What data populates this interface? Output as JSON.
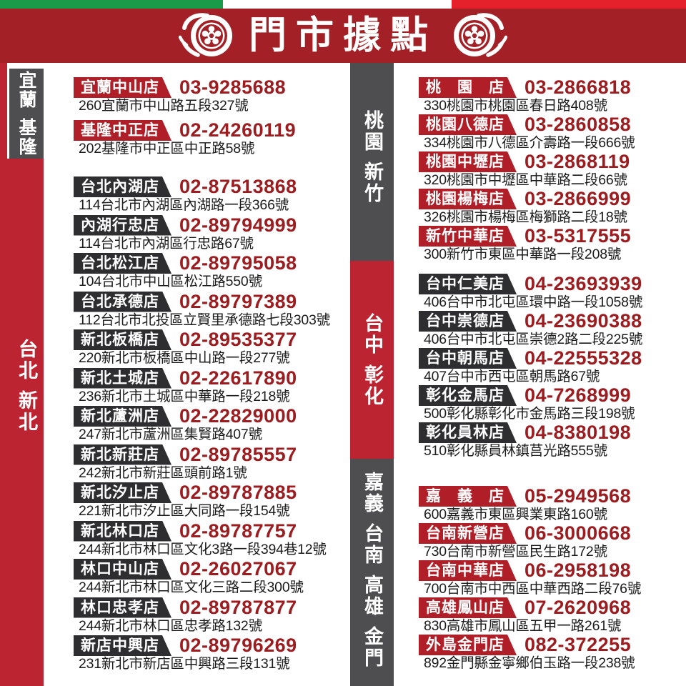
{
  "header": {
    "title": "門市據點",
    "left_icon": "tire-wheel-icon",
    "right_icon": "tire-wheel-icon"
  },
  "flag_stripe": {
    "green": "#1A9B4A",
    "white": "#FFFFFF",
    "red": "#E5222C"
  },
  "colors": {
    "banner_red": "#A32026",
    "badge_red": "#B01F27",
    "badge_dark": "#2E2E30",
    "bar_gray": "#4E4E50",
    "bar_red": "#BC2431",
    "phone_red": "#9C1C20",
    "address_black": "#1B1B1B"
  },
  "sidebars": {
    "left": [
      {
        "words": [
          "宜蘭",
          "基隆"
        ],
        "style": "gray"
      },
      {
        "words": [
          "台北",
          "新北"
        ],
        "style": "red"
      }
    ],
    "middle": [
      {
        "words": [
          "桃園",
          "新竹"
        ],
        "style": "gray"
      },
      {
        "words": [
          "台中",
          "彰化"
        ],
        "style": "red"
      },
      {
        "words": [
          "嘉義",
          "台南",
          "高雄",
          "金門"
        ],
        "style": "gray"
      }
    ]
  },
  "columns": {
    "left": [
      {
        "region": "宜蘭基隆",
        "badge_style": "red",
        "stores": [
          {
            "name": "宜蘭中山店",
            "phone": "03-9285688",
            "address": "260宜蘭市中山路五段327號"
          },
          {
            "name": "基隆中正店",
            "phone": "02-24260119",
            "address": "202基隆市中正區中正路58號"
          }
        ]
      },
      {
        "region": "台北新北",
        "badge_style": "dark",
        "stores": [
          {
            "name": "台北內湖店",
            "phone": "02-87513868",
            "address": "114台北市內湖區內湖路一段366號"
          },
          {
            "name": "內湖行忠店",
            "phone": "02-89794999",
            "address": "114台北市內湖區行忠路67號"
          },
          {
            "name": "台北松江店",
            "phone": "02-89795058",
            "address": "104台北市中山區松江路550號"
          },
          {
            "name": "台北承德店",
            "phone": "02-89797389",
            "address": "112台北市北投區立賢里承德路七段303號"
          },
          {
            "name": "新北板橋店",
            "phone": "02-89535377",
            "address": "220新北市板橋區中山路一段277號"
          },
          {
            "name": "新北土城店",
            "phone": "02-22617890",
            "address": "236新北市土城區中華路一段218號"
          },
          {
            "name": "新北蘆洲店",
            "phone": "02-22829000",
            "address": "247新北市蘆洲區集賢路407號"
          },
          {
            "name": "新北新莊店",
            "phone": "02-89785557",
            "address": "242新北市新莊區頭前路1號"
          },
          {
            "name": "新北汐止店",
            "phone": "02-89787885",
            "address": "221新北市汐止區大同路一段154號"
          },
          {
            "name": "新北林口店",
            "phone": "02-89787757",
            "address": "244新北市林口區文化3路一段394巷12號"
          },
          {
            "name": "林口中山店",
            "phone": "02-26027067",
            "address": "244新北市林口區文化三路二段300號"
          },
          {
            "name": "林口忠孝店",
            "phone": "02-89787877",
            "address": "244新北市林口區忠孝路132號"
          },
          {
            "name": "新店中興店",
            "phone": "02-89796269",
            "address": "231新北市新店區中興路三段131號"
          }
        ]
      }
    ],
    "right": [
      {
        "region": "桃園新竹",
        "badge_style": "red",
        "stores": [
          {
            "name": "桃　園　店",
            "phone": "03-2866818",
            "address": "330桃園市桃園區春日路408號"
          },
          {
            "name": "桃園八德店",
            "phone": "03-2860858",
            "address": "334桃園市八德區介壽路一段666號"
          },
          {
            "name": "桃園中壢店",
            "phone": "03-2868119",
            "address": "320桃園市中壢區中華路二段66號"
          },
          {
            "name": "桃園楊梅店",
            "phone": "03-2866999",
            "address": "326桃園市楊梅區梅獅路二段18號"
          },
          {
            "name": "新竹中華店",
            "phone": "03-5317555",
            "address": "300新竹市東區中華路一段208號"
          }
        ]
      },
      {
        "region": "台中彰化",
        "badge_style": "dark",
        "stores": [
          {
            "name": "台中仁美店",
            "phone": "04-23693939",
            "address": "406台中市北屯區環中路一段1058號"
          },
          {
            "name": "台中崇德店",
            "phone": "04-23690388",
            "address": "406台中市北屯區崇德2路二段225號"
          },
          {
            "name": "台中朝馬店",
            "phone": "04-22555328",
            "address": "407台中市西屯區朝馬路67號"
          },
          {
            "name": "彰化金馬店",
            "phone": "04-7268999",
            "address": "500彰化縣彰化市金馬路三段198號"
          },
          {
            "name": "彰化員林店",
            "phone": "04-8380198",
            "address": "510彰化縣員林鎮莒光路555號"
          }
        ]
      },
      {
        "region": "嘉義台南高雄金門",
        "badge_style": "red",
        "stores": [
          {
            "name": "嘉　義　店",
            "phone": "05-2949568",
            "address": "600嘉義市東區興業東路160號"
          },
          {
            "name": "台南新營店",
            "phone": "06-3000668",
            "address": "730台南市新營區民生路172號"
          },
          {
            "name": "台南中華店",
            "phone": "06-2958198",
            "address": "700台南市中西區中華西路二段76號"
          },
          {
            "name": "高雄鳳山店",
            "phone": "07-2620968",
            "address": "830高雄市鳳山區五甲一路261號"
          },
          {
            "name": "外島金門店",
            "phone": "082-372255",
            "address": "892金門縣金寧鄉伯玉路一段238號"
          }
        ]
      }
    ]
  }
}
